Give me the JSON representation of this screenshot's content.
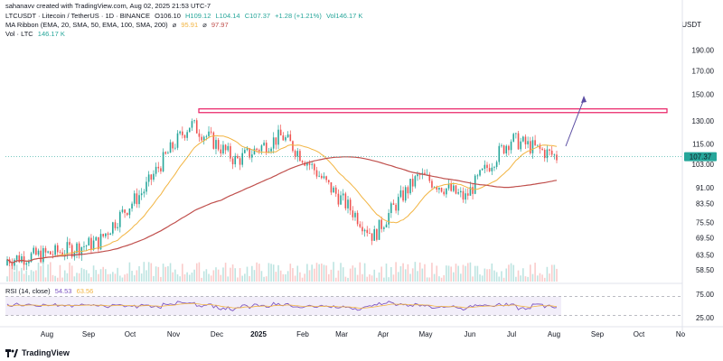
{
  "credit": "sahanavv created with TradingView.com, Aug 02, 2025 21:53 UTC-7",
  "symbol": {
    "title": "LTCUSDT · Litecoin / TetherUS · 1D · BINANCE",
    "open": "O106.10",
    "high": "H109.12",
    "low": "L104.14",
    "close": "C107.37",
    "change": "+1.28 (+1.21%)",
    "volume": "Vol146.17 K"
  },
  "ma_ribbon": {
    "label": "MA Ribbon (EMA, 20, SMA, 50, EMA, 100, SMA, 200)",
    "sep": "⌀",
    "v1": "95.91",
    "v2": "97.97"
  },
  "vol_legend": {
    "label": "Vol · LTC",
    "value": "146.17 K"
  },
  "currency": "USDT",
  "price_axis": [
    "190.00",
    "170.00",
    "150.00",
    "130.00",
    "115.00",
    "103.00",
    "91.00",
    "83.50",
    "75.50",
    "69.50",
    "63.50",
    "58.50"
  ],
  "last_price": "107.37",
  "rsi": {
    "label": "RSI (14, close)",
    "v1": "54.53",
    "v2": "63.56",
    "levels": [
      "75.00",
      "25.00"
    ]
  },
  "months": [
    "Aug",
    "Sep",
    "Oct",
    "Nov",
    "Dec",
    "2025",
    "Feb",
    "Mar",
    "Apr",
    "May",
    "Jun",
    "Jul",
    "Aug",
    "Sep",
    "Oct",
    "No"
  ],
  "brand": "TradingView",
  "colors": {
    "up": "#26a69a",
    "down": "#ef5350",
    "resistance": "#e91e63",
    "ma_short": "#f2b441",
    "ma_long": "#c0504d",
    "rsi": "#7e57c2",
    "arrow": "#5b4ea3"
  },
  "chart_data": {
    "type": "candlestick",
    "y_scale": "log",
    "ylim": [
      55,
      200
    ],
    "resistance_level": 136,
    "candles_close_approx": [
      {
        "month": "Aug",
        "close": 62
      },
      {
        "month": "Sep",
        "close": 64
      },
      {
        "month": "Oct",
        "close": 68
      },
      {
        "month": "Nov",
        "close": 90
      },
      {
        "month": "Dec",
        "close": 128
      },
      {
        "month": "2025",
        "close": 105
      },
      {
        "month": "Feb",
        "close": 120
      },
      {
        "month": "Mar",
        "close": 92
      },
      {
        "month": "Apr",
        "close": 70
      },
      {
        "month": "May",
        "close": 97
      },
      {
        "month": "Jun",
        "close": 86
      },
      {
        "month": "Jul",
        "close": 118
      },
      {
        "month": "Aug",
        "close": 107.37
      }
    ]
  }
}
